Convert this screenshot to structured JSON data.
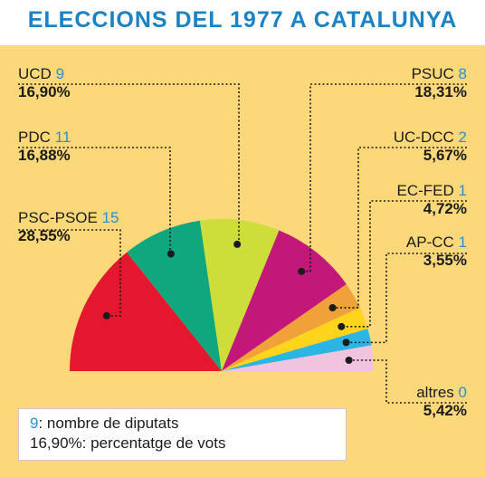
{
  "title": "ELECCIONS DEL 1977 A CATALUNYA",
  "legend": {
    "seats_example": "9",
    "seats_text": ": nombre de diputats",
    "votes_example": "16,90%",
    "votes_text": ": percentatge de vots"
  },
  "chart_data": {
    "type": "pie",
    "variant": "semicircle",
    "legend_placement": "bottom-left",
    "parties": [
      {
        "name": "PSC-PSOE",
        "seats": "15",
        "votes": "28,55%",
        "value": 28.55,
        "color": "#e4172e"
      },
      {
        "name": "PDC",
        "seats": "11",
        "votes": "16,88%",
        "value": 16.88,
        "color": "#10a77f"
      },
      {
        "name": "UCD",
        "seats": "9",
        "votes": "16,90%",
        "value": 16.9,
        "color": "#cddd3a"
      },
      {
        "name": "PSUC",
        "seats": "8",
        "votes": "18,31%",
        "value": 18.31,
        "color": "#c2187a"
      },
      {
        "name": "UC-DCC",
        "seats": "2",
        "votes": "5,67%",
        "value": 5.67,
        "color": "#f0a13a"
      },
      {
        "name": "EC-FED",
        "seats": "1",
        "votes": "4,72%",
        "value": 4.72,
        "color": "#ffd41a"
      },
      {
        "name": "AP-CC",
        "seats": "1",
        "votes": "3,55%",
        "value": 3.55,
        "color": "#2bb5e5"
      },
      {
        "name": "altres",
        "seats": "0",
        "votes": "5,42%",
        "value": 5.42,
        "color": "#f0c3df"
      }
    ]
  }
}
